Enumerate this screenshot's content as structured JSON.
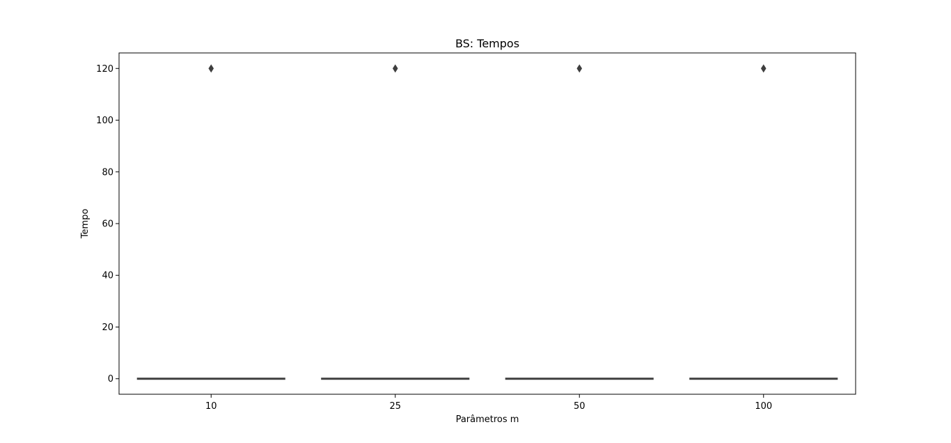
{
  "chart_data": {
    "type": "box",
    "title": "BS: Tempos",
    "xlabel": "Parâmetros m",
    "ylabel": "Tempo",
    "categories": [
      "10",
      "25",
      "50",
      "100"
    ],
    "boxes": [
      {
        "category": "10",
        "min": 0,
        "q1": 0,
        "median": 0,
        "q3": 0,
        "max": 0,
        "outliers": [
          120
        ]
      },
      {
        "category": "25",
        "min": 0,
        "q1": 0,
        "median": 0,
        "q3": 0,
        "max": 0,
        "outliers": [
          120
        ]
      },
      {
        "category": "50",
        "min": 0,
        "q1": 0,
        "median": 0,
        "q3": 0,
        "max": 0,
        "outliers": [
          120
        ]
      },
      {
        "category": "100",
        "min": 0,
        "q1": 0,
        "median": 0,
        "q3": 0,
        "max": 0,
        "outliers": [
          120
        ]
      }
    ],
    "ylim": [
      -6,
      126
    ],
    "yticks": [
      0,
      20,
      40,
      60,
      80,
      100,
      120
    ],
    "grid": false,
    "line_color": "#3f3f3f"
  }
}
